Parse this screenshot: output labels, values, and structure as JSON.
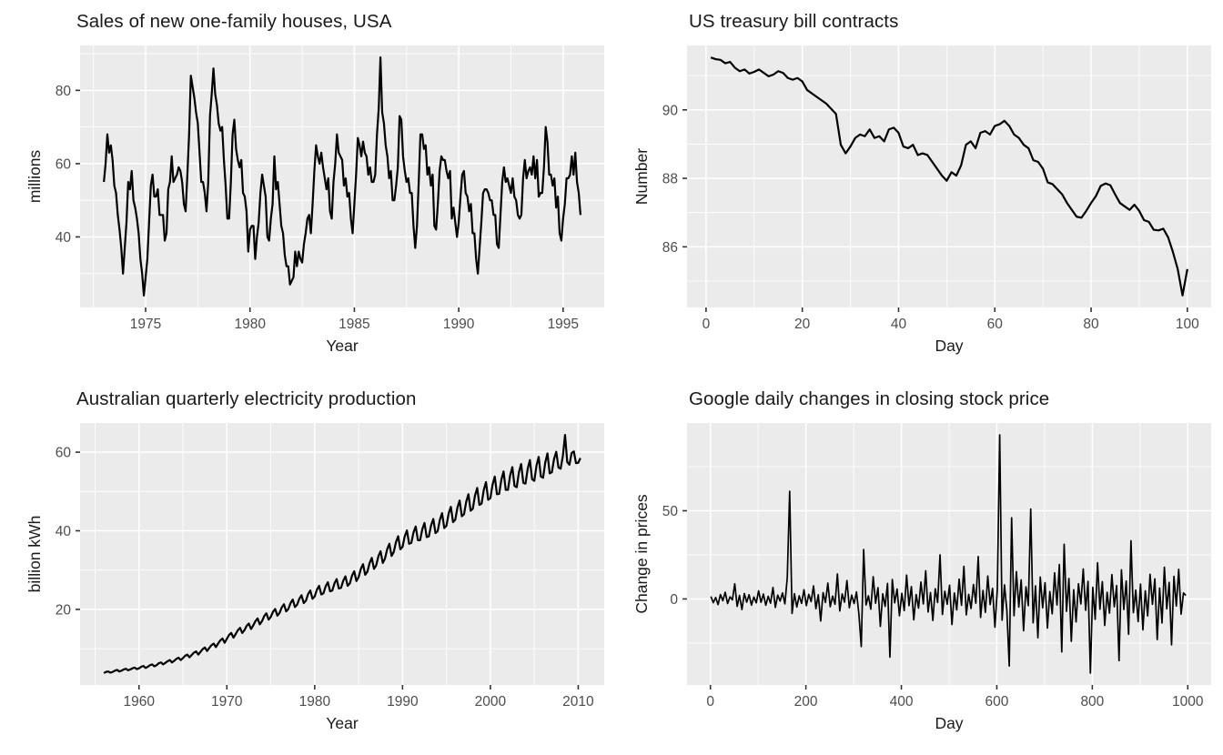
{
  "theme": {
    "background": "#FFFFFF",
    "panel_background": "#EBEBEB",
    "grid_major_color": "#FFFFFF",
    "grid_minor_color": "#FFFFFF",
    "tick_mark_color": "#333333",
    "axis_text_color": "#4D4D4D",
    "axis_title_color": "#1A1A1A",
    "title_color": "#1A1A1A",
    "series_color": "#000000"
  },
  "chart_data": [
    {
      "type": "line",
      "title": "Sales of new one-family houses, USA",
      "xlabel": "Year",
      "ylabel": "millions",
      "legend": "none",
      "grid": true,
      "xlim": [
        1971.86,
        1996.97
      ],
      "ylim": [
        20.75,
        92.25
      ],
      "xticks": [
        1975,
        1980,
        1985,
        1990,
        1995
      ],
      "xminor": [
        1972.5,
        1977.5,
        1982.5,
        1987.5,
        1992.5
      ],
      "yticks": [
        40,
        60,
        80
      ],
      "yminor": [
        30,
        50,
        70,
        90
      ],
      "x_start": 1973.0,
      "x_step": 0.083333,
      "line_width": 2.2,
      "values": [
        55,
        60,
        68,
        63,
        65,
        61,
        54,
        52,
        46,
        42,
        37,
        30,
        37,
        44,
        55,
        53,
        58,
        50,
        48,
        45,
        41,
        34,
        30,
        24,
        29,
        34,
        44,
        54,
        57,
        51,
        51,
        53,
        46,
        46,
        46,
        39,
        41,
        53,
        55,
        62,
        55,
        56,
        57,
        59,
        58,
        55,
        49,
        47,
        57,
        68,
        84,
        81,
        78,
        74,
        71,
        63,
        55,
        55,
        52,
        47,
        55,
        73,
        79,
        86,
        79,
        76,
        71,
        69,
        70,
        61,
        54,
        45,
        45,
        55,
        68,
        72,
        64,
        61,
        59,
        61,
        52,
        51,
        47,
        36,
        42,
        43,
        43,
        34,
        40,
        44,
        52,
        57,
        54,
        51,
        40,
        39,
        45,
        49,
        62,
        53,
        55,
        49,
        43,
        41,
        35,
        32,
        32,
        27,
        28,
        29,
        36,
        32,
        36,
        34,
        33,
        38,
        41,
        45,
        46,
        41,
        49,
        58,
        65,
        62,
        60,
        63,
        59,
        56,
        53,
        56,
        47,
        45,
        55,
        60,
        68,
        63,
        62,
        61,
        54,
        56,
        51,
        52,
        45,
        41,
        49,
        57,
        67,
        65,
        62,
        66,
        63,
        62,
        57,
        59,
        55,
        55,
        57,
        68,
        75,
        89,
        74,
        71,
        65,
        62,
        56,
        58,
        50,
        50,
        54,
        59,
        73,
        72,
        62,
        58,
        55,
        56,
        52,
        52,
        43,
        37,
        43,
        55,
        68,
        68,
        64,
        65,
        57,
        59,
        54,
        57,
        43,
        42,
        49,
        58,
        62,
        61,
        61,
        58,
        56,
        58,
        45,
        48,
        44,
        40,
        44,
        51,
        57,
        58,
        52,
        51,
        47,
        49,
        41,
        41,
        34,
        30,
        37,
        44,
        52,
        53,
        53,
        52,
        50,
        50,
        46,
        46,
        38,
        37,
        46,
        55,
        59,
        55,
        56,
        54,
        52,
        56,
        51,
        50,
        46,
        45,
        46,
        56,
        61,
        56,
        58,
        59,
        57,
        62,
        56,
        61,
        51,
        52,
        52,
        59,
        70,
        66,
        57,
        57,
        54,
        56,
        48,
        51,
        41,
        39,
        45,
        49,
        56,
        56,
        57,
        62,
        57,
        63,
        55,
        52,
        46
      ]
    },
    {
      "type": "line",
      "title": "US treasury bill contracts",
      "xlabel": "Day",
      "ylabel": "Number",
      "legend": "none",
      "grid": true,
      "xlim": [
        -3.95,
        104.95
      ],
      "ylim": [
        84.23,
        91.88
      ],
      "xticks": [
        0,
        20,
        40,
        60,
        80,
        100
      ],
      "xminor": [
        10,
        30,
        50,
        70,
        90
      ],
      "yticks": [
        86,
        88,
        90
      ],
      "yminor": [
        85,
        87,
        89,
        91
      ],
      "x_start": 1,
      "x_step": 1,
      "line_width": 2.2,
      "values": [
        91.53,
        91.48,
        91.46,
        91.36,
        91.4,
        91.23,
        91.13,
        91.18,
        91.06,
        91.11,
        91.18,
        91.08,
        90.98,
        91.03,
        91.13,
        91.08,
        90.93,
        90.88,
        90.93,
        90.83,
        90.58,
        90.48,
        90.38,
        90.28,
        90.18,
        90.03,
        89.88,
        88.98,
        88.73,
        88.93,
        89.18,
        89.28,
        89.23,
        89.43,
        89.18,
        89.23,
        89.08,
        89.43,
        89.48,
        89.33,
        88.93,
        88.88,
        88.98,
        88.68,
        88.73,
        88.68,
        88.48,
        88.28,
        88.08,
        87.93,
        88.18,
        88.08,
        88.38,
        88.98,
        89.08,
        88.88,
        89.33,
        89.38,
        89.28,
        89.53,
        89.58,
        89.68,
        89.53,
        89.28,
        89.18,
        88.98,
        88.88,
        88.53,
        88.48,
        88.28,
        87.88,
        87.83,
        87.68,
        87.53,
        87.28,
        87.08,
        86.88,
        86.85,
        87.05,
        87.28,
        87.48,
        87.78,
        87.85,
        87.8,
        87.53,
        87.28,
        87.18,
        87.08,
        87.23,
        87.05,
        86.78,
        86.73,
        86.5,
        86.48,
        86.53,
        86.28,
        85.85,
        85.35,
        84.58,
        85.35
      ]
    },
    {
      "type": "line",
      "title": "Australian quarterly electricity production",
      "xlabel": "Year",
      "ylabel": "billion kWh",
      "legend": "none",
      "grid": true,
      "xlim": [
        1953.29,
        2012.96
      ],
      "ylim": [
        0.77,
        67.43
      ],
      "xticks": [
        1960,
        1970,
        1980,
        1990,
        2000,
        2010
      ],
      "xminor": [
        1955,
        1965,
        1975,
        1985,
        1995,
        2005
      ],
      "yticks": [
        20,
        40,
        60
      ],
      "yminor": [
        10,
        30,
        50
      ],
      "x_start": 1956.0,
      "x_step": 0.25,
      "line_width": 2.2,
      "values": [
        3.8,
        4.1,
        4.2,
        3.9,
        4.1,
        4.4,
        4.6,
        4.2,
        4.4,
        4.7,
        4.9,
        4.5,
        4.7,
        5.0,
        5.2,
        4.8,
        5.0,
        5.4,
        5.6,
        5.1,
        5.4,
        5.8,
        6.0,
        5.5,
        5.8,
        6.3,
        6.5,
        6.0,
        6.4,
        6.8,
        7.1,
        6.5,
        6.9,
        7.4,
        7.7,
        7.1,
        7.6,
        8.2,
        8.5,
        7.8,
        8.4,
        9.0,
        9.3,
        8.5,
        9.2,
        9.9,
        10.3,
        9.4,
        10.2,
        10.9,
        11.3,
        10.4,
        11.3,
        12.1,
        12.6,
        11.5,
        12.5,
        13.5,
        14.0,
        12.8,
        13.7,
        14.7,
        15.3,
        14.0,
        14.7,
        15.8,
        16.4,
        15.0,
        15.9,
        17.0,
        17.7,
        16.2,
        17.0,
        18.3,
        19.0,
        17.4,
        18.1,
        19.4,
        20.1,
        18.4,
        19.1,
        20.5,
        21.3,
        19.5,
        20.1,
        21.6,
        22.5,
        20.6,
        21.2,
        22.7,
        23.6,
        21.6,
        22.2,
        23.9,
        24.8,
        22.7,
        23.3,
        25.0,
        26.0,
        23.8,
        24.1,
        25.9,
        26.9,
        24.6,
        24.8,
        26.6,
        27.7,
        25.3,
        25.5,
        27.3,
        28.4,
        26.0,
        26.6,
        28.6,
        29.7,
        27.2,
        28.2,
        30.3,
        31.5,
        28.8,
        29.6,
        31.8,
        33.1,
        30.3,
        31.2,
        33.5,
        34.8,
        31.8,
        32.9,
        35.3,
        36.7,
        33.6,
        34.6,
        37.1,
        38.6,
        35.3,
        35.9,
        38.6,
        40.1,
        36.7,
        36.9,
        39.6,
        41.1,
        37.6,
        37.6,
        40.4,
        42.0,
        38.4,
        38.6,
        41.4,
        43.0,
        39.4,
        39.9,
        42.8,
        44.5,
        40.7,
        41.3,
        44.4,
        46.1,
        42.2,
        42.8,
        45.9,
        47.7,
        43.7,
        44.2,
        47.4,
        49.3,
        45.1,
        45.6,
        49.0,
        50.9,
        46.6,
        46.9,
        50.4,
        52.4,
        47.9,
        48.3,
        51.8,
        53.8,
        49.3,
        49.4,
        53.0,
        55.1,
        50.4,
        50.4,
        54.1,
        56.2,
        51.4,
        51.1,
        54.9,
        57.0,
        52.2,
        52.0,
        55.8,
        58.0,
        53.1,
        52.7,
        56.6,
        58.8,
        53.8,
        53.5,
        57.4,
        59.7,
        54.6,
        54.9,
        58.3,
        60.1,
        56.1,
        55.8,
        59.0,
        64.4,
        57.5,
        56.8,
        59.8,
        60.2,
        57.2,
        57.3,
        58.5
      ]
    },
    {
      "type": "line",
      "title": "Google daily changes in closing stock price",
      "xlabel": "Day",
      "ylabel": "Change in prices",
      "legend": "none",
      "grid": true,
      "xlim": [
        -49,
        1049
      ],
      "ylim": [
        -48.75,
        99.75
      ],
      "xticks": [
        0,
        200,
        400,
        600,
        800,
        1000
      ],
      "xminor": [
        100,
        300,
        500,
        700,
        900
      ],
      "yticks": [
        0,
        50
      ],
      "yminor": [
        -25,
        25,
        75
      ],
      "x_start": 1,
      "x_step": 5,
      "line_width": 1.7,
      "values": [
        1.4,
        -2.1,
        0.8,
        -3.2,
        2.5,
        -1.0,
        3.8,
        -2.6,
        1.2,
        -0.5,
        8.6,
        -4.2,
        2.0,
        -6.0,
        3.1,
        -1.8,
        2.4,
        -3.5,
        1.1,
        -2.2,
        4.6,
        -1.9,
        2.8,
        -3.6,
        1.5,
        -2.4,
        6.5,
        -4.8,
        2.2,
        -1.2,
        3.4,
        -2.8,
        12.0,
        61.0,
        -8.2,
        3.0,
        -4.6,
        1.8,
        -2.5,
        5.2,
        -3.8,
        2.6,
        -1.5,
        7.4,
        -5.5,
        2.4,
        -12.5,
        3.6,
        -2.0,
        9.0,
        -4.4,
        1.6,
        -3.0,
        14.2,
        -6.8,
        2.8,
        -1.8,
        10.4,
        -5.0,
        2.2,
        -2.6,
        4.0,
        -8.5,
        -27.0,
        28.0,
        -3.4,
        1.8,
        -5.8,
        12.6,
        -2.4,
        6.4,
        -15.5,
        2.9,
        -4.2,
        8.8,
        -33.0,
        11.0,
        -2.2,
        5.6,
        -9.5,
        3.2,
        -6.6,
        13.5,
        -3.8,
        7.0,
        -11.8,
        2.5,
        -5.2,
        9.6,
        -2.8,
        16.0,
        -7.4,
        3.6,
        -12.2,
        5.8,
        -2.0,
        25.0,
        -8.8,
        4.4,
        -3.0,
        7.8,
        -14.5,
        3.4,
        -6.2,
        11.2,
        -3.6,
        18.5,
        -9.0,
        2.6,
        -5.4,
        8.2,
        -2.4,
        24.0,
        -10.5,
        4.8,
        -7.6,
        13.0,
        -3.2,
        6.0,
        -16.0,
        5.4,
        93.0,
        -12.0,
        8.0,
        -6.5,
        -38.0,
        46.0,
        -9.5,
        15.5,
        -4.6,
        10.8,
        -18.0,
        6.8,
        -3.8,
        51.0,
        -13.5,
        7.4,
        -22.0,
        12.4,
        -5.0,
        9.2,
        -16.5,
        4.2,
        -8.4,
        14.8,
        -3.4,
        19.5,
        -30.0,
        31.0,
        -7.0,
        11.6,
        -24.0,
        5.2,
        -13.0,
        8.6,
        -2.8,
        17.0,
        -6.4,
        10.0,
        -42.0,
        6.6,
        -11.5,
        20.5,
        -5.8,
        9.8,
        -15.0,
        3.8,
        -8.0,
        13.8,
        -4.4,
        7.6,
        -35.0,
        16.5,
        -6.0,
        10.2,
        -20.0,
        33.0,
        -7.8,
        5.0,
        -12.8,
        8.4,
        -17.5,
        4.6,
        -9.6,
        14.0,
        -3.0,
        11.4,
        -23.0,
        6.2,
        -13.6,
        18.0,
        -5.6,
        9.4,
        -26.0,
        12.8,
        -4.0,
        16.8,
        -8.6,
        3.4,
        2.0
      ]
    }
  ]
}
